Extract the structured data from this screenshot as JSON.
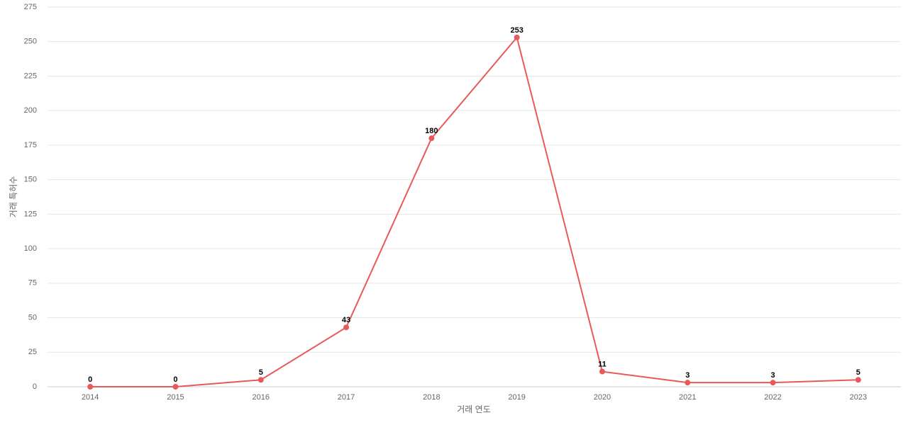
{
  "chart_data": {
    "type": "line",
    "x_label": "거래 연도",
    "y_label": "거래 특허수",
    "categories": [
      "2014",
      "2015",
      "2016",
      "2017",
      "2018",
      "2019",
      "2020",
      "2021",
      "2022",
      "2023"
    ],
    "values": [
      0,
      0,
      5,
      43,
      180,
      253,
      11,
      3,
      3,
      5
    ],
    "color": "#e85a5a",
    "ylim": [
      0,
      275
    ],
    "yticks": [
      0,
      25,
      50,
      75,
      100,
      125,
      150,
      175,
      200,
      225,
      250,
      275
    ],
    "grid": true
  }
}
